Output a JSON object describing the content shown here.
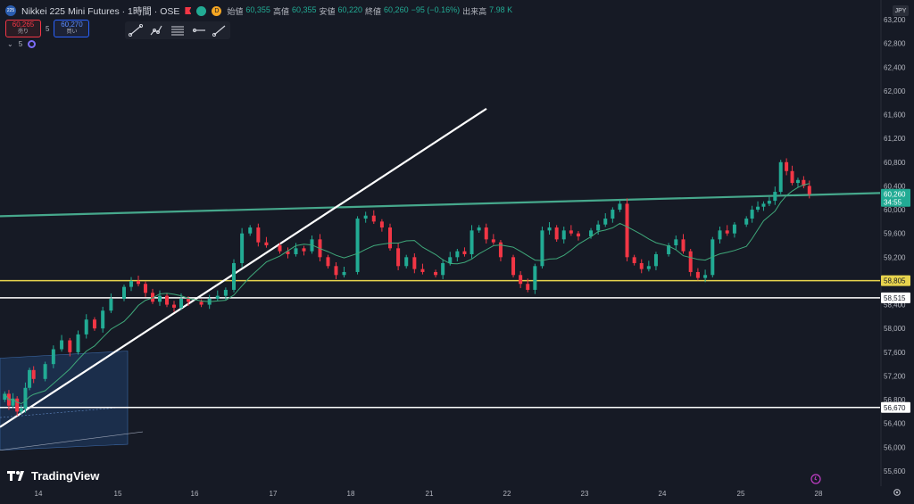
{
  "header": {
    "symbol_badge": "225",
    "symbol_title": "Nikkei 225 Mini Futures · 1時間 · OSE",
    "market_status_letter": "D",
    "ohlc": {
      "open_label": "始値",
      "open": "60,355",
      "high_label": "高値",
      "high": "60,355",
      "low_label": "安値",
      "low": "60,220",
      "close_label": "終値",
      "close": "60,260",
      "change": "−95 (−0.16%)",
      "volume_label": "出来高",
      "volume": "7.98 K"
    }
  },
  "trade": {
    "sell_price": "60,265",
    "sell_label": "売り",
    "buy_price": "60,270",
    "buy_label": "買い",
    "quantity": "5"
  },
  "indicators": {
    "count": "5"
  },
  "currency": "JPY",
  "branding": {
    "logo_text": "TradingView"
  },
  "toolbar": {
    "tools": [
      "trend-line-tool",
      "path-tool",
      "fib-tool",
      "ray-tool",
      "measure-tool"
    ]
  },
  "colors": {
    "background": "#161a25",
    "up": "#22ab94",
    "down": "#f23645",
    "ma": "#3fa87a",
    "channel": "#46a88c",
    "support_yellow": "#e8d44d",
    "line_white": "#ffffff"
  },
  "chart_data": {
    "type": "candlestick",
    "timeframe": "1時間",
    "y_axis": {
      "range": [
        55400,
        63300
      ],
      "tick_labels": [
        "63,200",
        "62,800",
        "62,400",
        "62,000",
        "61,600",
        "61,200",
        "60,800",
        "60,400",
        "60,000",
        "59,600",
        "59,200",
        "58,800",
        "58,400",
        "58,000",
        "57,600",
        "57,200",
        "56,800",
        "56,400",
        "56,000",
        "55,600"
      ]
    },
    "x_axis": {
      "tick_labels": [
        "14",
        "15",
        "16",
        "17",
        "18",
        "21",
        "22",
        "23",
        "24",
        "25",
        "28"
      ]
    },
    "price_labels": [
      {
        "value": "60,260",
        "countdown": "34:55",
        "kind": "last-price"
      },
      {
        "value": "58,805",
        "kind": "horizontal-line"
      },
      {
        "value": "58,515",
        "kind": "horizontal-line"
      },
      {
        "value": "56,670",
        "kind": "horizontal-line"
      }
    ],
    "horizontal_lines": [
      58805,
      58515,
      56670
    ],
    "grid": false,
    "session_closes": [
      {
        "session": "13",
        "closes": [
          56900,
          56700,
          56820,
          56600,
          56650,
          57000,
          57300,
          57150
        ]
      },
      {
        "session": "14",
        "closes": [
          57400,
          57650,
          57800,
          57600,
          57900,
          58150,
          58000,
          58300,
          58500
        ]
      },
      {
        "session": "15",
        "closes": [
          58700,
          58800,
          58750,
          58600,
          58450,
          58550,
          58400,
          58350,
          58500,
          58450
        ]
      },
      {
        "session": "16",
        "closes": [
          58400,
          58500,
          58550,
          58650,
          59100,
          59600,
          59700,
          59450,
          59400
        ]
      },
      {
        "session": "17",
        "closes": [
          59300,
          59250,
          59350,
          59300,
          59500,
          59200,
          59050,
          58900,
          58950
        ]
      },
      {
        "session": "18",
        "closes": [
          59850,
          59900,
          59800,
          59700,
          59350,
          59050,
          59200,
          59000,
          58950
        ]
      },
      {
        "session": "21",
        "closes": [
          58900,
          59100,
          59200,
          59300,
          59250,
          59650,
          59700,
          59500,
          59450,
          59200
        ]
      },
      {
        "session": "22",
        "closes": [
          58900,
          58750,
          58650,
          59050,
          59650,
          59700,
          59500,
          59650,
          59600,
          59550
        ]
      },
      {
        "session": "23",
        "closes": [
          59650,
          59750,
          59850,
          60000,
          60100,
          59200,
          59100,
          59000,
          59050,
          59250
        ]
      },
      {
        "session": "24",
        "closes": [
          59400,
          59500,
          59300,
          58950,
          58850,
          58900,
          59500,
          59650,
          59600,
          59750
        ]
      },
      {
        "session": "25",
        "closes": [
          59850,
          60000,
          60050,
          60100,
          60150,
          60300,
          60800,
          60650,
          60450,
          60500,
          60400,
          60260
        ]
      }
    ]
  }
}
